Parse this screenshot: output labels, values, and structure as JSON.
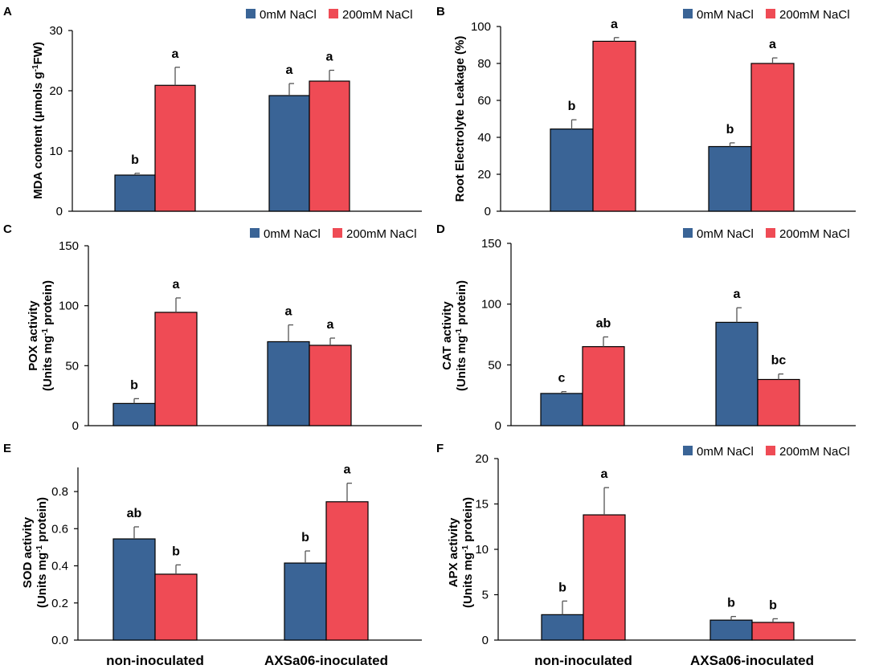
{
  "colors": {
    "s0": "#3a6496",
    "s1": "#ef4b55",
    "axis": "#000000"
  },
  "chart_data": [
    {
      "panel": "A",
      "type": "bar",
      "categories": [
        "non-inoculated",
        "AXSa06-inoculated"
      ],
      "ylabel_parts": [
        "MDA content (μmols g",
        "-1",
        "FW)"
      ],
      "ylim": [
        0,
        30
      ],
      "yticks": [
        0,
        10,
        20,
        30
      ],
      "ytick_labels": [
        "0",
        "10",
        "20",
        "30"
      ],
      "legend": [
        "0mM NaCl",
        "200mM NaCl"
      ],
      "series": [
        {
          "name": "0mM NaCl",
          "values": [
            6,
            19.2
          ],
          "errors": [
            0.3,
            2
          ],
          "letters": [
            "b",
            "a"
          ]
        },
        {
          "name": "200mM NaCl",
          "values": [
            20.9,
            21.6
          ],
          "errors": [
            3,
            1.8
          ],
          "letters": [
            "a",
            "a"
          ]
        }
      ]
    },
    {
      "panel": "B",
      "type": "bar",
      "categories": [
        "non-inoculated",
        "AXSa06-inoculated"
      ],
      "ylabel_parts": [
        "Root Electrolyte Leakage (%)"
      ],
      "ylim": [
        0,
        100
      ],
      "yticks": [
        0,
        20,
        40,
        60,
        80,
        100
      ],
      "ytick_labels": [
        "0",
        "20",
        "40",
        "60",
        "80",
        "100"
      ],
      "legend": [
        "0mM NaCl",
        "200mM NaCl"
      ],
      "series": [
        {
          "name": "0mM NaCl",
          "values": [
            44.5,
            35
          ],
          "errors": [
            5,
            2
          ],
          "letters": [
            "b",
            "b"
          ]
        },
        {
          "name": "200mM NaCl",
          "values": [
            92,
            80
          ],
          "errors": [
            2,
            3
          ],
          "letters": [
            "a",
            "a"
          ]
        }
      ]
    },
    {
      "panel": "C",
      "type": "bar",
      "categories": [
        "non-inoculated",
        "AXSa06-inoculated"
      ],
      "ylabel_lines": [
        "POX activity",
        "(Units mg",
        "-1",
        " protein)"
      ],
      "ylim": [
        0,
        150
      ],
      "yticks": [
        0,
        50,
        100,
        150
      ],
      "ytick_labels": [
        "0",
        "50",
        "100",
        "150"
      ],
      "legend": [
        "0mM NaCl",
        "200mM NaCl"
      ],
      "series": [
        {
          "name": "0mM NaCl",
          "values": [
            18.5,
            70
          ],
          "errors": [
            4,
            14
          ],
          "letters": [
            "b",
            "a"
          ]
        },
        {
          "name": "200mM NaCl",
          "values": [
            94.5,
            67
          ],
          "errors": [
            12,
            6
          ],
          "letters": [
            "a",
            "a"
          ]
        }
      ]
    },
    {
      "panel": "D",
      "type": "bar",
      "categories": [
        "non-inoculated",
        "AXSa06-inoculated"
      ],
      "ylabel_lines": [
        "CAT activity",
        "(Units mg",
        "-1",
        " protein)"
      ],
      "ylim": [
        0,
        150
      ],
      "yticks": [
        0,
        50,
        100,
        150
      ],
      "ytick_labels": [
        "0",
        "50",
        "100",
        "150"
      ],
      "legend": [
        "0mM NaCl",
        "200mM NaCl"
      ],
      "series": [
        {
          "name": "0mM NaCl",
          "values": [
            26.5,
            85
          ],
          "errors": [
            1.5,
            12
          ],
          "letters": [
            "c",
            "a"
          ]
        },
        {
          "name": "200mM NaCl",
          "values": [
            65,
            38
          ],
          "errors": [
            8,
            4.5
          ],
          "letters": [
            "ab",
            "bc"
          ]
        }
      ]
    },
    {
      "panel": "E",
      "type": "bar",
      "categories": [
        "non-inoculated",
        "AXSa06-inoculated"
      ],
      "xcat_labels": [
        "non-inoculated",
        "AXSa06-inoculated"
      ],
      "ylabel_lines": [
        "SOD activity",
        "(Units mg",
        "-1",
        " protein)"
      ],
      "ylim": [
        0,
        0.93
      ],
      "yticks": [
        0,
        0.2,
        0.4,
        0.6,
        0.8
      ],
      "ytick_labels": [
        "0.0",
        "0.2",
        "0.4",
        "0.6",
        "0.8"
      ],
      "series": [
        {
          "name": "0mM NaCl",
          "values": [
            0.545,
            0.415
          ],
          "errors": [
            0.065,
            0.065
          ],
          "letters": [
            "ab",
            "b"
          ]
        },
        {
          "name": "200mM NaCl",
          "values": [
            0.355,
            0.745
          ],
          "errors": [
            0.05,
            0.1
          ],
          "letters": [
            "b",
            "a"
          ]
        }
      ]
    },
    {
      "panel": "F",
      "type": "bar",
      "categories": [
        "non-inoculated",
        "AXSa06-inoculated"
      ],
      "xcat_labels": [
        "non-inoculated",
        "AXSa06-inoculated"
      ],
      "ylabel_lines": [
        "APX activity",
        "(Units mg",
        "-1",
        " protein)"
      ],
      "ylim": [
        0,
        20
      ],
      "yticks": [
        0,
        5,
        10,
        15,
        20
      ],
      "ytick_labels": [
        "0",
        "5",
        "10",
        "15",
        "20"
      ],
      "legend": [
        "0mM NaCl",
        "200mM NaCl"
      ],
      "series": [
        {
          "name": "0mM NaCl",
          "values": [
            2.8,
            2.2
          ],
          "errors": [
            1.5,
            0.4
          ],
          "letters": [
            "b",
            "b"
          ]
        },
        {
          "name": "200mM NaCl",
          "values": [
            13.8,
            1.95
          ],
          "errors": [
            3,
            0.4
          ],
          "letters": [
            "a",
            "b"
          ]
        }
      ]
    }
  ]
}
